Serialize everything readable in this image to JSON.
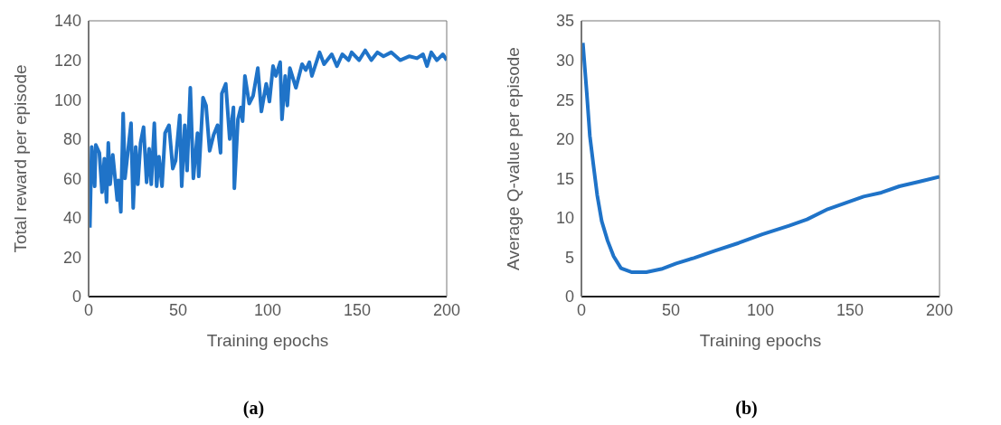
{
  "chart_data": [
    {
      "type": "line",
      "title": "(a)",
      "xlabel": "Training epochs",
      "ylabel": "Total reward per episode",
      "xlim": [
        0,
        200
      ],
      "xticks": [
        0,
        50,
        100,
        150,
        200
      ],
      "ylim": [
        0,
        140
      ],
      "yticks": [
        0,
        20,
        40,
        60,
        80,
        100,
        120,
        140
      ],
      "grid": false,
      "legend": false,
      "marker": "none",
      "line_style": "solid",
      "series": [
        {
          "color": "#1f73c8",
          "x": [
            0.7,
            1.7,
            3.4,
            4,
            6,
            7.5,
            8.8,
            10,
            11,
            12,
            13.5,
            16,
            16.7,
            18,
            19.3,
            20.3,
            23.7,
            24.9,
            26.3,
            27.5,
            29,
            30.7,
            32.4,
            33.8,
            35,
            36.7,
            38,
            39.3,
            41,
            42.7,
            44.9,
            47,
            48.6,
            50.9,
            52,
            53.7,
            55,
            56.8,
            58.5,
            60.8,
            61.5,
            63.9,
            65.6,
            67.6,
            69.8,
            72,
            73.7,
            74.4,
            76.6,
            78.8,
            80.9,
            81.4,
            83.4,
            85,
            86,
            87.3,
            89.7,
            91.9,
            94.5,
            96.5,
            99.2,
            101,
            103,
            104.6,
            107,
            108,
            109.8,
            111,
            112.4,
            115.8,
            119.2,
            121.3,
            123.3,
            124.7,
            129,
            131.5,
            135.8,
            138.7,
            141.7,
            145.2,
            146.9,
            151.1,
            154.5,
            157.9,
            161.3,
            164.7,
            169,
            174,
            179.2,
            183.4,
            186.8,
            189,
            191.4,
            194.5,
            197.9,
            200
          ],
          "values": [
            35,
            76,
            56,
            77,
            73,
            53,
            70,
            48,
            78,
            57,
            72,
            49,
            59,
            43,
            93,
            60,
            88,
            45,
            76,
            57,
            78,
            86,
            58,
            75,
            57,
            88,
            56,
            71,
            56,
            83,
            87,
            65,
            69,
            92,
            56,
            87,
            64,
            106,
            60,
            83,
            61,
            101,
            97,
            74,
            82,
            87,
            73,
            103,
            108,
            80,
            96,
            55,
            90,
            96,
            89,
            112,
            98,
            102,
            116,
            94,
            108,
            99,
            117,
            112,
            119,
            90,
            112,
            97,
            116,
            106,
            118,
            115,
            119,
            112,
            124,
            118,
            123,
            117,
            123,
            120,
            124,
            120,
            125,
            120,
            124,
            122,
            124,
            120,
            122,
            121,
            123,
            117,
            124,
            120,
            123,
            120
          ]
        }
      ]
    },
    {
      "type": "line",
      "title": "(b)",
      "xlabel": "Training epochs",
      "ylabel": "Average Q-value per episode",
      "xlim": [
        0,
        200
      ],
      "xticks": [
        0,
        50,
        100,
        150,
        200
      ],
      "ylim": [
        0,
        35
      ],
      "yticks": [
        0,
        5,
        10,
        15,
        20,
        25,
        30,
        35
      ],
      "grid": false,
      "legend": false,
      "marker": "none",
      "line_style": "solid",
      "series": [
        {
          "color": "#1f73c8",
          "x": [
            0.8,
            3,
            4.7,
            6.7,
            8.8,
            11.3,
            14.6,
            18,
            22.1,
            27.9,
            36.2,
            44.6,
            52.9,
            62.8,
            74.5,
            87.8,
            101,
            116,
            126,
            137.6,
            147.6,
            157.6,
            167.6,
            177.6,
            189,
            200
          ],
          "values": [
            32.2,
            25.8,
            20.4,
            16.7,
            12.9,
            9.6,
            7.1,
            5.1,
            3.6,
            3.1,
            3.1,
            3.5,
            4.2,
            4.9,
            5.8,
            6.8,
            7.9,
            9.0,
            9.8,
            11.1,
            11.9,
            12.7,
            13.2,
            14.0,
            14.6,
            15.2
          ]
        }
      ]
    }
  ]
}
